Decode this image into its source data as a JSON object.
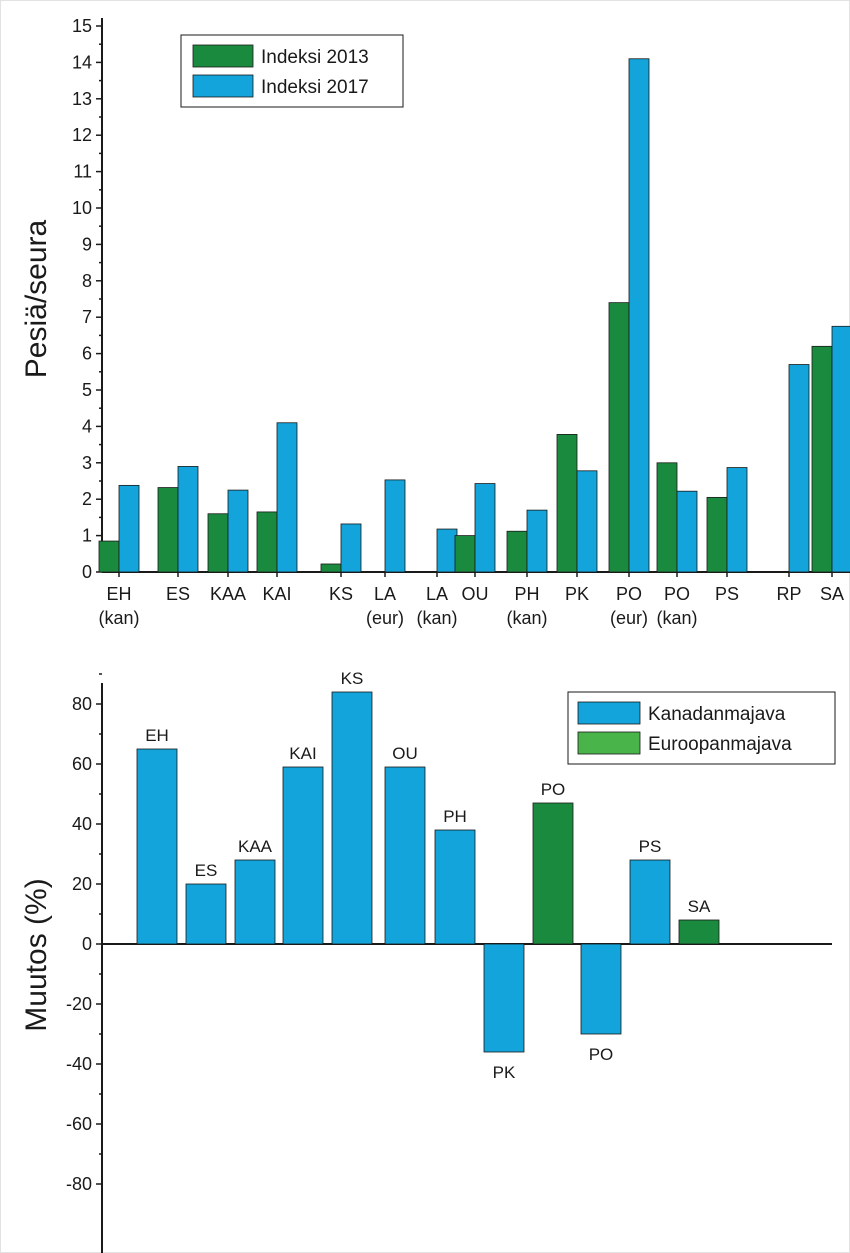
{
  "colors": {
    "green": "#1a8a3e",
    "blue": "#12a4da",
    "legend_green": "#49b449"
  },
  "chart_data": [
    {
      "type": "bar",
      "ylabel": "Pesiä/seura",
      "ylim": [
        0,
        15
      ],
      "yticks": [
        0,
        1,
        2,
        3,
        4,
        5,
        6,
        7,
        8,
        9,
        10,
        11,
        12,
        13,
        14,
        15
      ],
      "legend_position": "top-left",
      "categories": [
        [
          "EH",
          "(kan)"
        ],
        [
          "ES"
        ],
        [
          "KAA"
        ],
        [
          "KAI"
        ],
        [
          "KS"
        ],
        [
          "LA",
          "(eur)"
        ],
        [
          "LA",
          "(kan)"
        ],
        [
          "OU"
        ],
        [
          "PH",
          "(kan)"
        ],
        [
          "PK"
        ],
        [
          "PO",
          "(eur)"
        ],
        [
          "PO",
          "(kan)"
        ],
        [
          "PS"
        ],
        [
          "RP"
        ],
        [
          "SA"
        ]
      ],
      "series": [
        {
          "name": "Indeksi 2013",
          "color": "#1a8a3e",
          "values": [
            0.85,
            2.32,
            1.6,
            1.65,
            0.22,
            null,
            null,
            1.0,
            1.12,
            3.78,
            7.4,
            3.0,
            2.05,
            null,
            6.2
          ]
        },
        {
          "name": "Indeksi 2017",
          "color": "#12a4da",
          "values": [
            2.38,
            2.9,
            2.25,
            4.1,
            1.32,
            2.53,
            1.18,
            2.43,
            1.7,
            2.78,
            14.1,
            2.22,
            2.87,
            5.7,
            6.75
          ]
        }
      ]
    },
    {
      "type": "bar",
      "ylabel": "Muutos (%)",
      "ylim": [
        -90,
        95
      ],
      "yticks": [
        -80,
        -60,
        -40,
        -20,
        0,
        20,
        40,
        60,
        80
      ],
      "legend_position": "top-right",
      "legend": [
        {
          "name": "Kanadanmajava",
          "color": "#12a4da"
        },
        {
          "name": "Euroopanmajava",
          "color": "#49b449"
        }
      ],
      "bars": [
        {
          "label": "EH",
          "value": 65,
          "series": "Kanadanmajava"
        },
        {
          "label": "ES",
          "value": 20,
          "series": "Kanadanmajava"
        },
        {
          "label": "KAA",
          "value": 28,
          "series": "Kanadanmajava"
        },
        {
          "label": "KAI",
          "value": 59,
          "series": "Kanadanmajava"
        },
        {
          "label": "KS",
          "value": 84,
          "series": "Kanadanmajava"
        },
        {
          "label": "OU",
          "value": 59,
          "series": "Kanadanmajava"
        },
        {
          "label": "PH",
          "value": 38,
          "series": "Kanadanmajava"
        },
        {
          "label": "PK",
          "value": -36,
          "series": "Kanadanmajava"
        },
        {
          "label": "PO",
          "value": 47,
          "series": "Euroopanmajava"
        },
        {
          "label": "PO",
          "value": -30,
          "series": "Kanadanmajava"
        },
        {
          "label": "PS",
          "value": 28,
          "series": "Kanadanmajava"
        },
        {
          "label": "SA",
          "value": 8,
          "series": "Euroopanmajava"
        }
      ]
    }
  ]
}
